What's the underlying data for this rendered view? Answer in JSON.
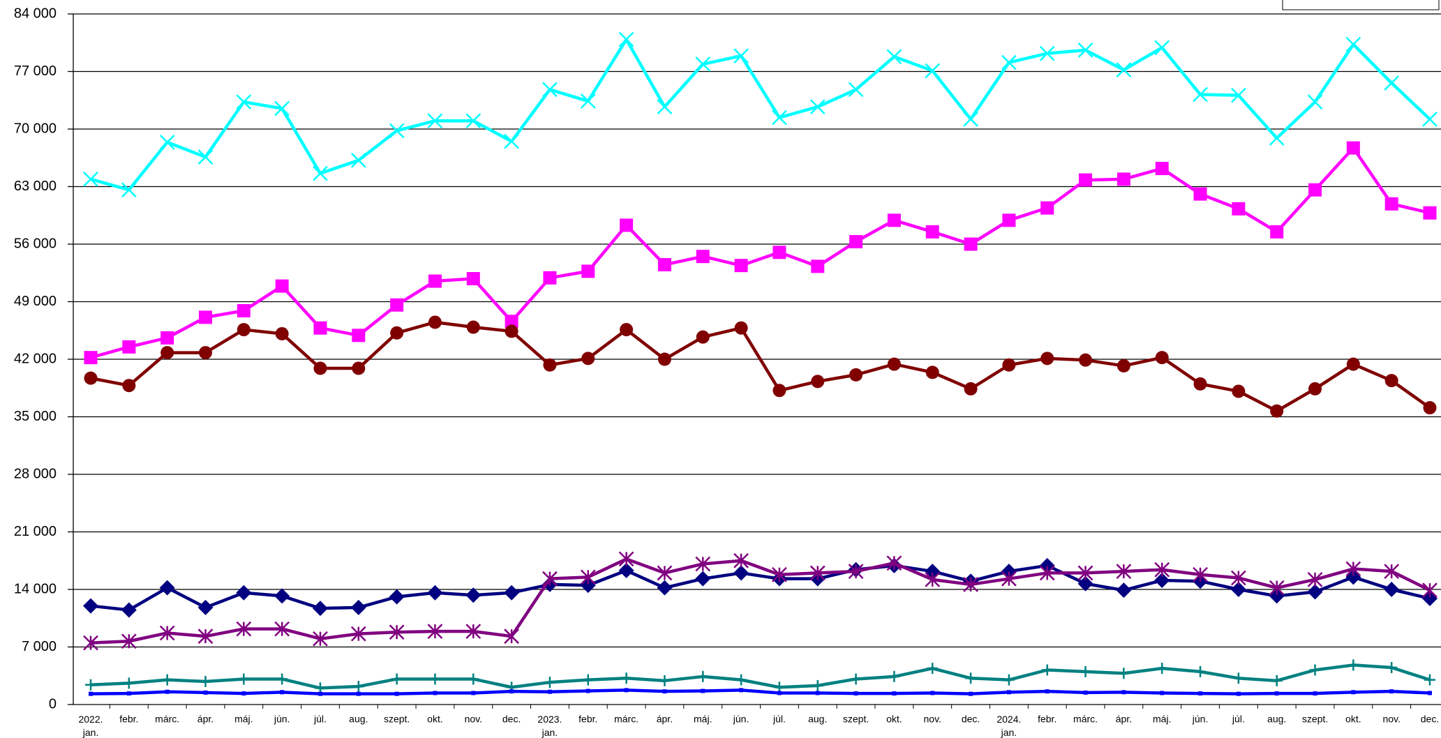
{
  "chart_data": {
    "type": "line",
    "categories": [
      "2022. jan.",
      "febr.",
      "márc.",
      "ápr.",
      "máj.",
      "jún.",
      "júl.",
      "aug.",
      "szept.",
      "okt.",
      "nov.",
      "dec.",
      "2023. jan.",
      "febr.",
      "márc.",
      "ápr.",
      "máj.",
      "jún.",
      "júl.",
      "aug.",
      "szept.",
      "okt.",
      "nov.",
      "dec.",
      "2024. jan.",
      "febr.",
      "márc.",
      "ápr.",
      "máj.",
      "jún.",
      "júl.",
      "aug.",
      "szept.",
      "okt.",
      "nov.",
      "dec."
    ],
    "ylim": [
      0,
      84000
    ],
    "yticks": [
      0,
      {
        "value": 7000,
        "label": "7 000"
      },
      {
        "value": 14000,
        "label": "14 000"
      },
      {
        "value": 21000,
        "label": "21 000"
      },
      {
        "value": 28000,
        "label": "28 000"
      },
      {
        "value": 35000,
        "label": "35 000"
      },
      {
        "value": 42000,
        "label": "42 000"
      },
      {
        "value": 49000,
        "label": "49 000"
      },
      {
        "value": 56000,
        "label": "56 000"
      },
      {
        "value": 63000,
        "label": "63 000"
      },
      {
        "value": 70000,
        "label": "70 000"
      },
      {
        "value": 77000,
        "label": "77 000"
      },
      {
        "value": 84000,
        "label": "84 000"
      }
    ],
    "grid": true,
    "series": [
      {
        "color": "#00ffff",
        "marker": "x",
        "values": [
          63900,
          62600,
          68400,
          66600,
          73300,
          72500,
          64600,
          66200,
          69800,
          71000,
          71000,
          68500,
          74800,
          73400,
          80900,
          72700,
          77900,
          78900,
          71400,
          72700,
          74800,
          78800,
          77100,
          71200,
          78100,
          79200,
          79600,
          77200,
          79900,
          74200,
          74100,
          68900,
          73300,
          80300,
          75600,
          71200
        ]
      },
      {
        "color": "#ff00ff",
        "marker": "square",
        "values": [
          42200,
          43500,
          44600,
          47100,
          47900,
          50900,
          45800,
          44900,
          48600,
          51500,
          51800,
          46600,
          51900,
          52700,
          58300,
          53500,
          54500,
          53400,
          55000,
          53300,
          56300,
          58900,
          57500,
          56000,
          58900,
          60400,
          63800,
          63900,
          65200,
          62100,
          60300,
          57500,
          62600,
          67700,
          60900,
          59800
        ]
      },
      {
        "color": "#800000",
        "marker": "circle",
        "values": [
          39700,
          38800,
          42800,
          42800,
          45600,
          45100,
          40900,
          40900,
          45200,
          46500,
          45900,
          45400,
          41300,
          42100,
          45600,
          42000,
          44700,
          45800,
          38200,
          39300,
          40100,
          41400,
          40400,
          38400,
          41300,
          42100,
          41900,
          41200,
          42200,
          39000,
          38100,
          35700,
          38400,
          41400,
          39400,
          36100
        ]
      },
      {
        "color": "#000080",
        "marker": "diamond",
        "values": [
          12000,
          11500,
          14200,
          11800,
          13600,
          13200,
          11700,
          11800,
          13100,
          13600,
          13300,
          13600,
          14600,
          14500,
          16300,
          14200,
          15300,
          16000,
          15300,
          15300,
          16400,
          16900,
          16200,
          15000,
          16200,
          16900,
          14700,
          13900,
          15100,
          15000,
          14000,
          13200,
          13700,
          15500,
          14000,
          12900
        ]
      },
      {
        "color": "#800080",
        "marker": "asterisk",
        "values": [
          7500,
          7700,
          8700,
          8300,
          9200,
          9200,
          8000,
          8600,
          8800,
          8900,
          8900,
          8300,
          15300,
          15500,
          17700,
          16000,
          17100,
          17500,
          15800,
          16000,
          16200,
          17200,
          15200,
          14600,
          15300,
          16000,
          16000,
          16200,
          16400,
          15800,
          15400,
          14200,
          15200,
          16500,
          16200,
          13900
        ]
      },
      {
        "color": "#008080",
        "marker": "plus",
        "values": [
          2400,
          2600,
          3000,
          2800,
          3100,
          3100,
          2000,
          2200,
          3100,
          3100,
          3100,
          2100,
          2700,
          3000,
          3200,
          2900,
          3400,
          3000,
          2100,
          2300,
          3100,
          3400,
          4400,
          3200,
          3000,
          4200,
          4000,
          3800,
          4400,
          4000,
          3200,
          2900,
          4200,
          4800,
          4500,
          3000
        ]
      },
      {
        "color": "#0000ff",
        "marker": "dot",
        "values": [
          1300,
          1350,
          1550,
          1450,
          1350,
          1500,
          1300,
          1300,
          1300,
          1400,
          1400,
          1600,
          1550,
          1650,
          1750,
          1600,
          1650,
          1750,
          1400,
          1400,
          1350,
          1350,
          1400,
          1300,
          1500,
          1600,
          1450,
          1500,
          1400,
          1350,
          1300,
          1350,
          1350,
          1500,
          1600,
          1400
        ]
      }
    ]
  }
}
